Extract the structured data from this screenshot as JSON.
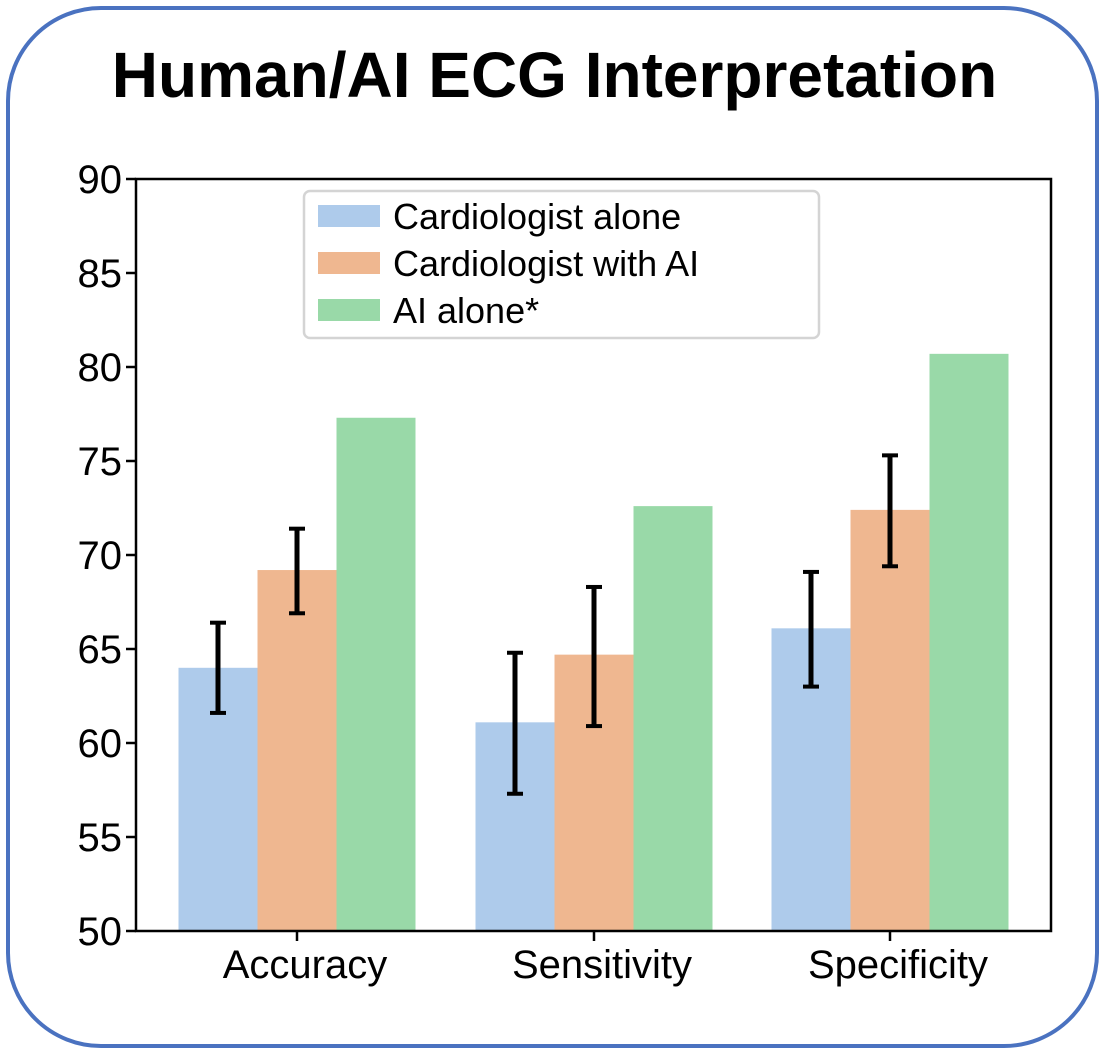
{
  "chart_data": {
    "type": "bar",
    "title": "Human/AI ECG Interpretation",
    "categories": [
      "Accuracy",
      "Sensitivity",
      "Specificity"
    ],
    "series": [
      {
        "name": "Cardiologist alone",
        "color": "#aecbeb",
        "values": [
          64.0,
          61.1,
          66.1
        ],
        "error": [
          [
            61.6,
            66.4
          ],
          [
            57.3,
            64.8
          ],
          [
            63.0,
            69.1
          ]
        ]
      },
      {
        "name": "Cardiologist with AI",
        "color": "#efb790",
        "values": [
          69.2,
          64.7,
          72.4
        ],
        "error": [
          [
            66.9,
            71.4
          ],
          [
            60.9,
            68.3
          ],
          [
            69.4,
            75.3
          ]
        ]
      },
      {
        "name": "AI alone*",
        "color": "#99d9a8",
        "values": [
          77.3,
          72.6,
          80.7
        ],
        "error": null
      }
    ],
    "ylim": [
      50,
      90
    ],
    "yticks": [
      50,
      55,
      60,
      65,
      70,
      75,
      80,
      85,
      90
    ],
    "xlabel": "",
    "ylabel": "",
    "legend": "top-left"
  }
}
